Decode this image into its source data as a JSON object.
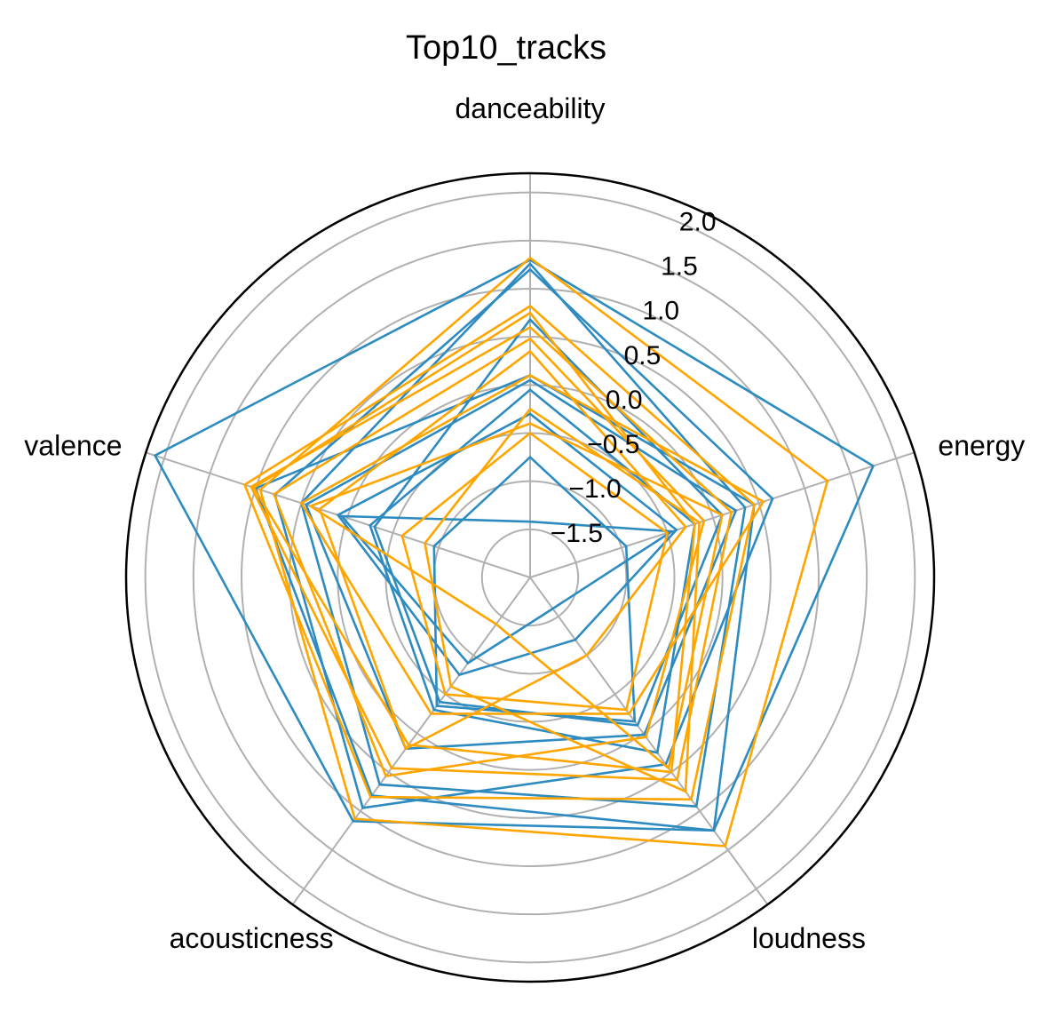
{
  "chart_data": {
    "type": "radar",
    "title": "Top10_tracks",
    "axes": [
      "danceability",
      "energy",
      "loudness",
      "acousticness",
      "valence"
    ],
    "rlim": [
      -2.0,
      2.2
    ],
    "rticks": [
      -1.5,
      -1.0,
      -0.5,
      0.0,
      0.5,
      1.0,
      1.5,
      2.0
    ],
    "rtick_labels": [
      "−1.5",
      "−1.0",
      "−0.5",
      "0.0",
      "0.5",
      "1.0",
      "1.5",
      "2.0"
    ],
    "grid": true,
    "colors": {
      "blue": "#2e8bc0",
      "orange": "#ffa500"
    },
    "series": [
      {
        "color": "#2e8bc0",
        "values": [
          1.3,
          1.75,
          1.25,
          1.13,
          2.1
        ]
      },
      {
        "color": "#2e8bc0",
        "values": [
          1.26,
          0.35,
          0.94,
          0.66,
          0.5
        ]
      },
      {
        "color": "#2e8bc0",
        "values": [
          0.1,
          0.45,
          1.25,
          0.8,
          1.0
        ]
      },
      {
        "color": "#2e8bc0",
        "values": [
          1.2,
          0.65,
          0.4,
          0.96,
          0.79
        ]
      },
      {
        "color": "#2e8bc0",
        "values": [
          0.05,
          0.25,
          0.02,
          0.2,
          0.45
        ]
      },
      {
        "color": "#2e8bc0",
        "values": [
          0.68,
          0.1,
          -0.1,
          -0.4,
          -0.3
        ]
      },
      {
        "color": "#2e8bc0",
        "values": [
          -0.75,
          -0.95,
          -0.15,
          -0.35,
          -0.95
        ]
      },
      {
        "color": "#2e8bc0",
        "values": [
          -1.42,
          -0.45,
          -1.6,
          -0.9,
          0.06
        ]
      },
      {
        "color": "#2e8bc0",
        "values": [
          -0.3,
          -0.4,
          -1.2,
          -0.75,
          0.1
        ]
      },
      {
        "color": "#2e8bc0",
        "values": [
          -0.05,
          -0.2,
          0.25,
          -0.3,
          -0.25
        ]
      },
      {
        "color": "#ffa500",
        "values": [
          1.32,
          1.25,
          1.45,
          1.1,
          0.95
        ]
      },
      {
        "color": "#ffa500",
        "values": [
          0.82,
          0.45,
          0.85,
          0.82,
          1.12
        ]
      },
      {
        "color": "#ffa500",
        "values": [
          0.6,
          0.2,
          0.6,
          0.45,
          1.05
        ]
      },
      {
        "color": "#ffa500",
        "values": [
          0.48,
          -0.1,
          0.05,
          0.55,
          0.8
        ]
      },
      {
        "color": "#ffa500",
        "values": [
          0.35,
          -0.3,
          -1.0,
          0.2,
          0.3
        ]
      },
      {
        "color": "#ffa500",
        "values": [
          0.1,
          0.55,
          -0.25,
          -0.25,
          0.5
        ]
      },
      {
        "color": "#ffa500",
        "values": [
          -0.25,
          -0.15,
          0.75,
          -0.6,
          -0.85
        ]
      },
      {
        "color": "#ffa500",
        "values": [
          -0.4,
          0.1,
          0.45,
          -1.4,
          0.4
        ]
      },
      {
        "color": "#ffa500",
        "values": [
          0.75,
          -0.2,
          0.5,
          0.15,
          1.02
        ]
      },
      {
        "color": "#ffa500",
        "values": [
          -0.5,
          -0.5,
          -0.3,
          -0.5,
          -0.6
        ]
      }
    ]
  }
}
